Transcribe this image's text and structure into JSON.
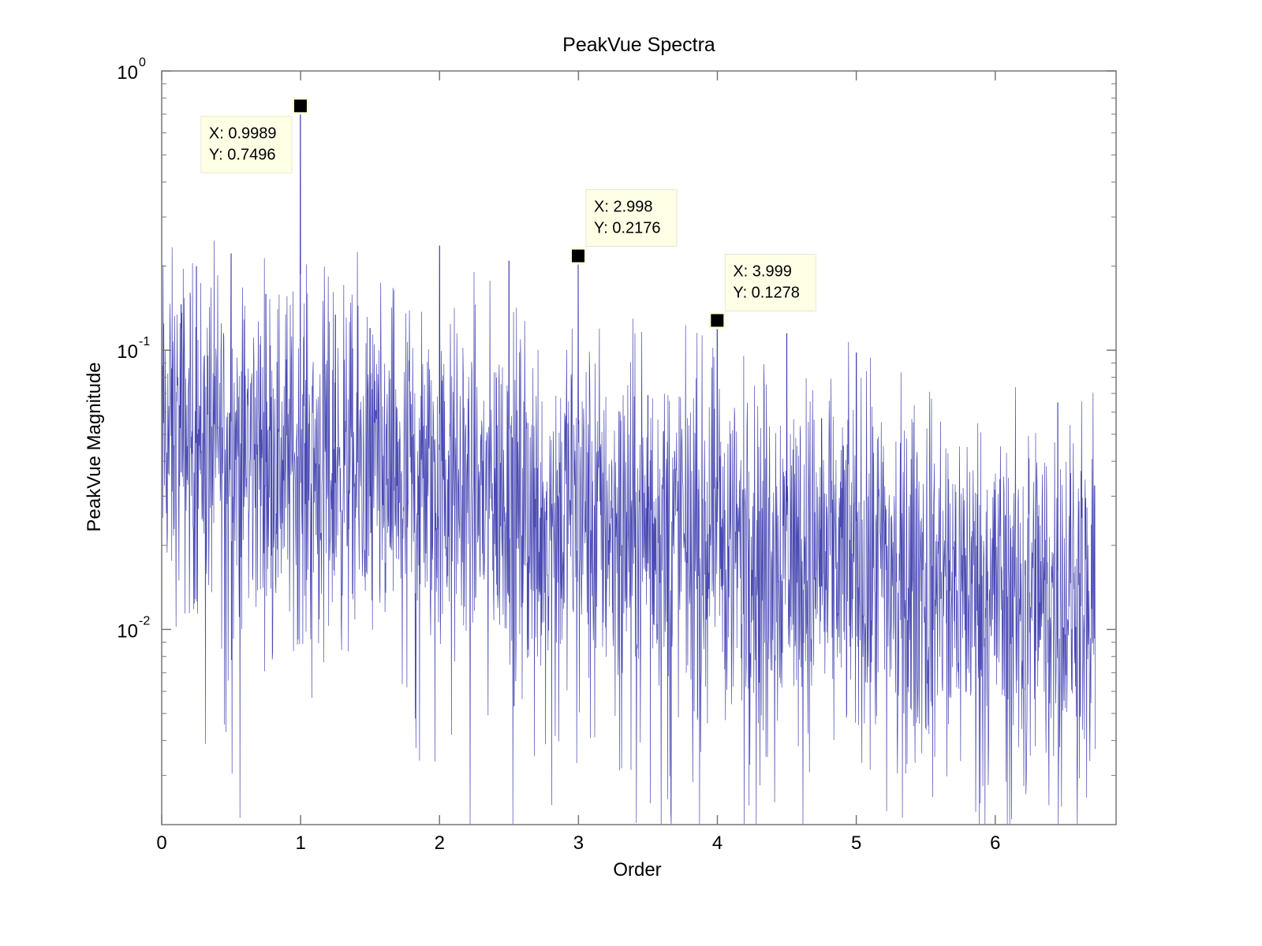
{
  "chart_data": {
    "type": "line",
    "title": "PeakVue Spectra",
    "xlabel": "Order",
    "ylabel": "PeakVue Magnitude",
    "xlim": [
      0,
      6.87
    ],
    "ylim": [
      0.002,
      1
    ],
    "yscale": "log",
    "grid": false,
    "x_ticks": [
      "0",
      "1",
      "2",
      "3",
      "4",
      "5",
      "6"
    ],
    "y_ticks": [
      {
        "base": "10",
        "exp": "0",
        "value": 1
      },
      {
        "base": "10",
        "exp": "-1",
        "value": 0.1
      },
      {
        "base": "10",
        "exp": "-2",
        "value": 0.01
      }
    ],
    "line_color": "#2b2ba6",
    "data_extent_x": 6.72,
    "prominent_peaks": {
      "x": [
        0.0,
        0.14,
        0.25,
        0.5,
        0.75,
        0.9989,
        1.25,
        1.5,
        2.0,
        2.5,
        2.998,
        3.5,
        3.999,
        4.5,
        4.75,
        5.0,
        6.45
      ],
      "y": [
        0.22,
        0.146,
        0.2,
        0.222,
        0.159,
        0.7496,
        0.134,
        0.12,
        0.237,
        0.209,
        0.2176,
        0.069,
        0.1278,
        0.115,
        0.057,
        0.098,
        0.065
      ]
    },
    "noise_floor": {
      "x": [
        0,
        6.72
      ],
      "y": [
        0.05,
        0.012
      ]
    },
    "datatips": [
      {
        "x": 0.9989,
        "y": 0.7496,
        "x_label": "X: 0.9989",
        "y_label": "Y: 0.7496",
        "placement": "bottom-left"
      },
      {
        "x": 2.998,
        "y": 0.2176,
        "x_label": "X: 2.998",
        "y_label": "Y: 0.2176",
        "placement": "top-right"
      },
      {
        "x": 3.999,
        "y": 0.1278,
        "x_label": "X: 3.999",
        "y_label": "Y: 0.1278",
        "placement": "top-right"
      }
    ]
  }
}
